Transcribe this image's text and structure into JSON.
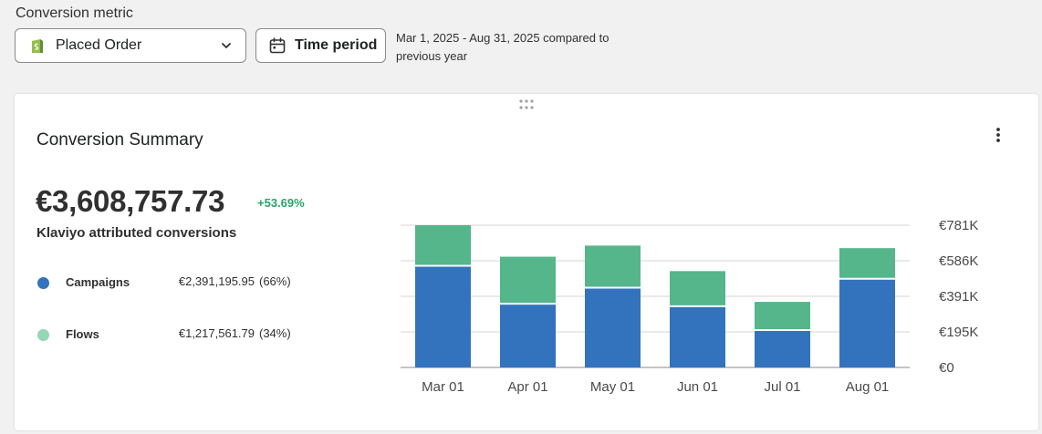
{
  "filters": {
    "metric_label": "Conversion metric",
    "metric_value": "Placed Order",
    "time_button": "Time period",
    "period_text": "Mar 1, 2025 - Aug 31, 2025 compared to previous year"
  },
  "card": {
    "title": "Conversion Summary",
    "total": "€3,608,757.73",
    "change": "+53.69%",
    "subtitle": "Klaviyo attributed conversions",
    "legend": [
      {
        "name": "Campaigns",
        "amount": "€2,391,195.95",
        "pct": "(66%)",
        "color": "#3373be"
      },
      {
        "name": "Flows",
        "amount": "€1,217,561.79",
        "pct": "(34%)",
        "color": "#93d7b5"
      }
    ]
  },
  "chart_data": {
    "type": "bar",
    "stacked": true,
    "categories": [
      "Mar 01",
      "Apr 01",
      "May 01",
      "Jun 01",
      "Jul 01",
      "Aug 01"
    ],
    "series": [
      {
        "name": "Campaigns",
        "color": "#3373be",
        "values": [
          558000,
          350000,
          438000,
          336000,
          205000,
          487000
        ]
      },
      {
        "name": "Flows",
        "color": "#55b58b",
        "values": [
          223000,
          258000,
          231000,
          193000,
          155000,
          168000
        ]
      }
    ],
    "y_ticks": [
      "€0",
      "€195K",
      "€391K",
      "€586K",
      "€781K"
    ],
    "ylim": [
      0,
      781000
    ],
    "grid": true
  }
}
